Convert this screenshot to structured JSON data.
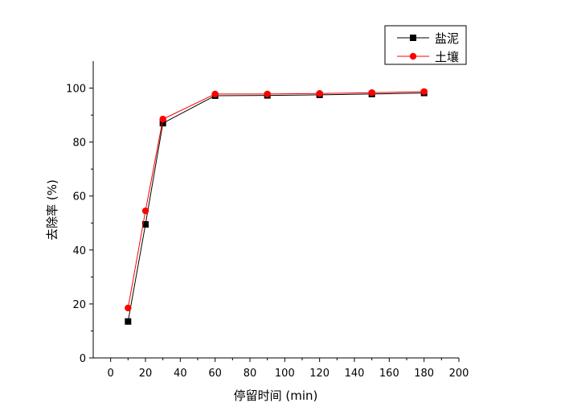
{
  "chart_data": {
    "type": "line",
    "xlabel": "停留时间 (min)",
    "ylabel": "去除率 (%)",
    "xlim": [
      -10,
      200
    ],
    "ylim": [
      0,
      110
    ],
    "xticks": [
      0,
      20,
      40,
      60,
      80,
      100,
      120,
      140,
      160,
      180,
      200
    ],
    "yticks": [
      0,
      20,
      40,
      60,
      80,
      100
    ],
    "grid": false,
    "legend_position": "top-right",
    "series": [
      {
        "name": "盐泥",
        "color": "#000000",
        "marker": "square",
        "x": [
          10,
          20,
          30,
          60,
          90,
          120,
          150,
          180
        ],
        "y": [
          13.5,
          49.5,
          87,
          97.2,
          97.3,
          97.5,
          97.8,
          98.2
        ]
      },
      {
        "name": "土壤",
        "color": "#ff0000",
        "marker": "circle",
        "x": [
          10,
          20,
          30,
          60,
          90,
          120,
          150,
          180
        ],
        "y": [
          18.5,
          54.5,
          88.5,
          97.8,
          97.8,
          98.0,
          98.3,
          98.7
        ]
      }
    ]
  }
}
